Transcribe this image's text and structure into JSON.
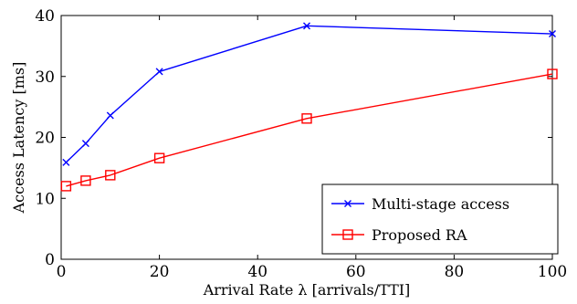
{
  "chart_data": {
    "type": "line",
    "title": "",
    "xlabel": "Arrival Rate λ [arrivals/TTI]",
    "ylabel": "Access Latency [ms]",
    "xlim": [
      0,
      100
    ],
    "ylim": [
      0,
      40
    ],
    "xticks": [
      0,
      20,
      40,
      60,
      80,
      100
    ],
    "yticks": [
      0,
      10,
      20,
      30,
      40
    ],
    "grid": false,
    "legend_position": "bottom-right",
    "series": [
      {
        "name": "Multi-stage access",
        "color": "#0000ff",
        "marker": "x",
        "x": [
          1,
          5,
          10,
          20,
          50,
          100
        ],
        "y": [
          15.9,
          19.0,
          23.6,
          30.8,
          38.3,
          37.0
        ]
      },
      {
        "name": "Proposed RA",
        "color": "#ff0000",
        "marker": "square",
        "x": [
          1,
          5,
          10,
          20,
          50,
          100
        ],
        "y": [
          12.0,
          12.9,
          13.8,
          16.6,
          23.1,
          30.4
        ]
      }
    ]
  }
}
